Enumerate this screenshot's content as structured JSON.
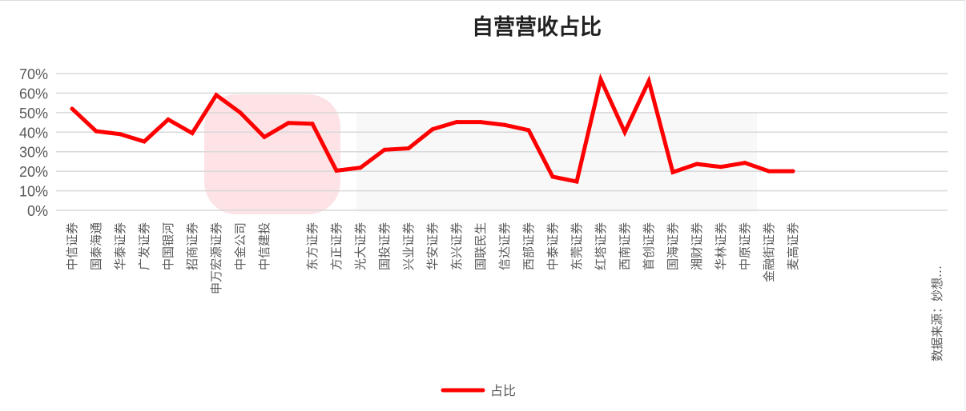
{
  "chart_data": {
    "type": "line",
    "title": "自营营收占比",
    "xlabel": "",
    "ylabel": "",
    "ylim": [
      0,
      0.7
    ],
    "yticks": [
      "0%",
      "10%",
      "20%",
      "30%",
      "40%",
      "50%",
      "60%",
      "70%"
    ],
    "grid": true,
    "legend_position": "bottom",
    "categories": [
      "中信证券",
      "国泰海通",
      "华泰证券",
      "广发证券",
      "中国银河",
      "招商证券",
      "申万宏源证券",
      "中金公司",
      "中信建投",
      "",
      "东方证券",
      "方正证券",
      "光大证券",
      "国投证券",
      "兴业证券",
      "华安证券",
      "东兴证券",
      "国联民生",
      "信达证券",
      "西部证券",
      "中泰证券",
      "东莞证券",
      "红塔证券",
      "西南证券",
      "首创证券",
      "国海证券",
      "湘财证券",
      "华林证券",
      "中原证券",
      "金融街证券",
      "麦高证券"
    ],
    "series": [
      {
        "name": "占比",
        "color": "#ff0000",
        "values": [
          0.52,
          0.405,
          0.39,
          0.352,
          0.465,
          0.395,
          0.59,
          0.5,
          0.375,
          0.447,
          0.443,
          0.203,
          0.218,
          0.31,
          0.317,
          0.415,
          0.452,
          0.452,
          0.437,
          0.41,
          0.172,
          0.147,
          0.67,
          0.4,
          0.662,
          0.195,
          0.237,
          0.222,
          0.243,
          0.2,
          0.2
        ]
      }
    ],
    "note": "数据来源：妙想…"
  },
  "colors": {
    "line": "#ff0000",
    "grid": "#d9d9d9",
    "watermark_red": "#fde3e6",
    "watermark_grey": "#efefef"
  }
}
